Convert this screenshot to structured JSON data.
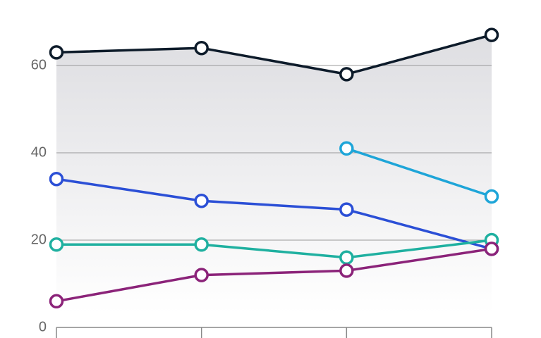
{
  "chart_data": {
    "type": "line",
    "categories": [
      null,
      null,
      null,
      null
    ],
    "series": [
      {
        "color": "#0d1b2a",
        "area": true,
        "values": [
          63,
          64,
          58,
          67
        ]
      },
      {
        "color": "#2b4fd6",
        "values": [
          34,
          29,
          27,
          18
        ]
      },
      {
        "color": "#1ea5d8",
        "values": [
          null,
          null,
          41,
          30
        ]
      },
      {
        "color": "#1fb0a0",
        "values": [
          19,
          19,
          16,
          20
        ]
      },
      {
        "color": "#8b2379",
        "values": [
          6,
          12,
          13,
          18
        ]
      }
    ],
    "ylim": [
      0,
      75
    ],
    "yticks": [
      0,
      20,
      40,
      60
    ],
    "grid": true
  }
}
